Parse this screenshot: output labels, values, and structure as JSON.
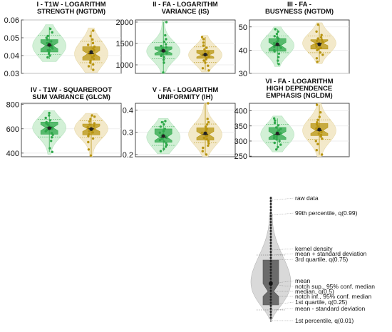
{
  "colors": {
    "green": "#2ea84a",
    "green_light": "#cdeed2",
    "gold": "#b8940f",
    "gold_light": "#f2e7c4",
    "legend_gray": "#cfcfcf",
    "legend_dark": "#6b6b6b"
  },
  "chart_data": [
    {
      "type": "violin",
      "title_lines": [
        "I - T1W - LOGARITHM",
        "STRENGTH (NGTDM)"
      ],
      "yticks": [
        "0.06",
        "0.05",
        "0.04",
        "0.03"
      ],
      "ylim": [
        0.03,
        0.06
      ],
      "groups": [
        {
          "color": "green",
          "mean": 0.046,
          "median": 0.0455,
          "q1": 0.042,
          "q3": 0.049,
          "p01": 0.038,
          "p99": 0.056,
          "spread": 0.0045,
          "points": [
            0.055,
            0.053,
            0.051,
            0.05,
            0.049,
            0.048,
            0.047,
            0.047,
            0.046,
            0.046,
            0.045,
            0.045,
            0.044,
            0.043,
            0.043,
            0.042,
            0.041,
            0.04,
            0.039
          ]
        },
        {
          "color": "gold",
          "mean": 0.042,
          "median": 0.041,
          "q1": 0.0375,
          "q3": 0.045,
          "p01": 0.032,
          "p99": 0.054,
          "spread": 0.005,
          "points": [
            0.054,
            0.051,
            0.049,
            0.047,
            0.046,
            0.045,
            0.044,
            0.043,
            0.042,
            0.041,
            0.041,
            0.04,
            0.039,
            0.038,
            0.037,
            0.036,
            0.035,
            0.034,
            0.032
          ]
        }
      ]
    },
    {
      "type": "violin",
      "title_lines": [
        "II - FA - LOGARITHM",
        "VARIANCE (IS)"
      ],
      "yticks": [
        "2000",
        "1500",
        "1000"
      ],
      "ylim": [
        800,
        2050
      ],
      "groups": [
        {
          "color": "green",
          "mean": 1330,
          "median": 1320,
          "q1": 1230,
          "q3": 1420,
          "p01": 820,
          "p99": 2000,
          "spread": 160,
          "points": [
            2000,
            1690,
            1600,
            1540,
            1480,
            1440,
            1410,
            1380,
            1350,
            1330,
            1310,
            1290,
            1270,
            1240,
            1210,
            1180,
            1120,
            1050,
            820
          ]
        },
        {
          "color": "gold",
          "mean": 1240,
          "median": 1230,
          "q1": 1150,
          "q3": 1340,
          "p01": 870,
          "p99": 1650,
          "spread": 150,
          "points": [
            1650,
            1600,
            1520,
            1450,
            1400,
            1360,
            1320,
            1290,
            1260,
            1240,
            1220,
            1190,
            1160,
            1130,
            1100,
            1050,
            980,
            920,
            870
          ]
        }
      ]
    },
    {
      "type": "violin",
      "title_lines": [
        "III - FA -",
        "BUSYNESS (NGTDM)"
      ],
      "yticks": [
        "50",
        "40",
        "30"
      ],
      "ylim": [
        30,
        53
      ],
      "groups": [
        {
          "color": "green",
          "mean": 42.5,
          "median": 42,
          "q1": 39.5,
          "q3": 45,
          "p01": 34,
          "p99": 49,
          "spread": 3,
          "points": [
            49,
            48,
            47,
            46,
            45.5,
            45,
            44,
            43.5,
            43,
            42.5,
            42,
            41.5,
            41,
            40,
            39.5,
            38.5,
            37,
            35.5,
            34
          ]
        },
        {
          "color": "gold",
          "mean": 42.5,
          "median": 43,
          "q1": 40.5,
          "q3": 44.5,
          "p01": 35,
          "p99": 51,
          "spread": 3,
          "points": [
            51,
            48,
            46.5,
            45.5,
            45,
            44.5,
            44,
            43.5,
            43,
            42.5,
            42,
            41.5,
            41,
            40.5,
            40,
            39,
            38,
            36.5,
            35
          ]
        }
      ]
    },
    {
      "type": "violin",
      "title_lines": [
        "IV - T1W - SQUAREROOT",
        "SUM VARIANCE (GLCM)"
      ],
      "yticks": [
        "800",
        "600",
        "400"
      ],
      "ylim": [
        370,
        810
      ],
      "groups": [
        {
          "color": "green",
          "mean": 605,
          "median": 610,
          "q1": 555,
          "q3": 655,
          "p01": 410,
          "p99": 730,
          "spread": 60,
          "points": [
            730,
            710,
            690,
            670,
            655,
            645,
            635,
            625,
            615,
            610,
            600,
            590,
            580,
            565,
            550,
            530,
            500,
            440,
            410
          ]
        },
        {
          "color": "gold",
          "mean": 598,
          "median": 600,
          "q1": 550,
          "q3": 640,
          "p01": 380,
          "p99": 710,
          "spread": 58,
          "points": [
            710,
            700,
            680,
            660,
            645,
            635,
            625,
            615,
            605,
            600,
            590,
            580,
            570,
            555,
            540,
            520,
            490,
            430,
            380
          ]
        }
      ]
    },
    {
      "type": "violin",
      "title_lines": [
        "V - FA - LOGARITHM",
        "UNIFORMITY (IH)"
      ],
      "yticks": [
        "0.4",
        "0.3",
        "0.2"
      ],
      "ylim": [
        0.19,
        0.43
      ],
      "groups": [
        {
          "color": "green",
          "mean": 0.283,
          "median": 0.278,
          "q1": 0.255,
          "q3": 0.315,
          "p01": 0.215,
          "p99": 0.35,
          "spread": 0.035,
          "points": [
            0.35,
            0.345,
            0.335,
            0.325,
            0.315,
            0.305,
            0.298,
            0.29,
            0.285,
            0.28,
            0.275,
            0.27,
            0.265,
            0.258,
            0.25,
            0.243,
            0.235,
            0.225,
            0.215
          ]
        },
        {
          "color": "gold",
          "mean": 0.295,
          "median": 0.29,
          "q1": 0.265,
          "q3": 0.32,
          "p01": 0.2,
          "p99": 0.43,
          "spread": 0.035,
          "points": [
            0.43,
            0.36,
            0.345,
            0.335,
            0.325,
            0.315,
            0.305,
            0.298,
            0.292,
            0.288,
            0.282,
            0.275,
            0.268,
            0.26,
            0.25,
            0.24,
            0.23,
            0.215,
            0.2
          ]
        }
      ]
    },
    {
      "type": "violin",
      "title_lines": [
        "VI - FA - LOGARITHM",
        "HIGH DEPENDENCE",
        "EMPHASIS (NGLDM)"
      ],
      "yticks": [
        "400",
        "350",
        "300",
        "250"
      ],
      "ylim": [
        248,
        425
      ],
      "groups": [
        {
          "color": "green",
          "mean": 325,
          "median": 322,
          "q1": 305,
          "q3": 345,
          "p01": 272,
          "p99": 375,
          "spread": 25,
          "points": [
            375,
            368,
            360,
            352,
            345,
            340,
            335,
            330,
            326,
            322,
            318,
            314,
            310,
            305,
            300,
            294,
            288,
            280,
            272
          ]
        },
        {
          "color": "gold",
          "mean": 338,
          "median": 335,
          "q1": 318,
          "q3": 358,
          "p01": 255,
          "p99": 420,
          "spread": 27,
          "points": [
            420,
            395,
            380,
            370,
            362,
            355,
            348,
            342,
            338,
            335,
            330,
            325,
            320,
            315,
            308,
            300,
            290,
            270,
            255
          ]
        }
      ]
    }
  ],
  "legend": {
    "labels": {
      "raw": "raw data",
      "p99": "99th percentile, q(0.99)",
      "kde": "kernel density",
      "mpsd": "mean + standard deviation",
      "q3": "3rd quartile, q(0.75)",
      "mean": "mean",
      "nsup": "notch sup., 95% conf. median",
      "median": "median, q(0.5)",
      "ninf": "notch inf., 95% conf. median",
      "q1": "1st quartile, q(0.25)",
      "mmsd": "mean - standard deviation",
      "p01": "1st percentile, q(0.01)"
    }
  }
}
